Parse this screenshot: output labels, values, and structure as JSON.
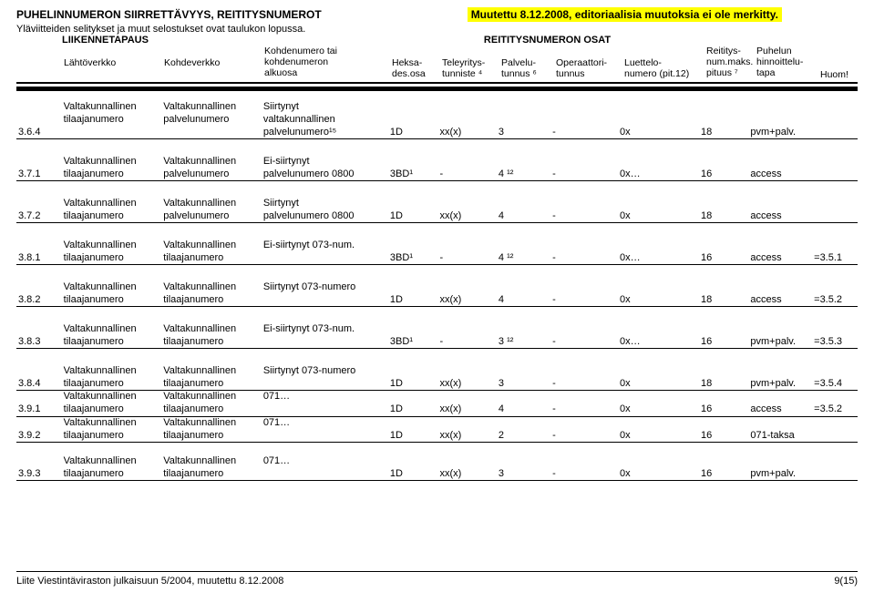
{
  "header": {
    "title": "PUHELINNUMERON SIIRRETTÄVYYS, REITITYSNUMEROT",
    "changed": "Muutettu 8.12.2008, editoriaalisia muutoksia ei ole merkitty.",
    "subtitle": "Yläviitteiden selitykset ja muut selostukset ovat taulukon lopussa.",
    "group_left": "LIIKENNETAPAUS",
    "group_right": "REITITYSNUMERON OSAT",
    "cols": {
      "lahto": "Lähtöverkko",
      "kohde": "Kohdeverkko",
      "num_l1": "Kohdenumero tai",
      "num_l2": "kohdenumeron",
      "num_l3": "alkuosa",
      "heksa_l1": "Heksa-",
      "heksa_l2": "des.osa",
      "tele_l1": "Teleyritys-",
      "tele_l2": "tunniste ⁴",
      "palv_l1": "Palvelu-",
      "palv_l2": "tunnus ⁶",
      "oper_l1": "Operaattori-",
      "oper_l2": "tunnus",
      "luet_l1": "Luettelo-",
      "luet_l2": "numero (pit.12)",
      "reit_l1": "Reititys-",
      "reit_l2": "num.maks.",
      "reit_l3": "pituus ⁷",
      "hinn_l1": "Puhelun",
      "hinn_l2": "hinnoittelu-",
      "hinn_l3": "tapa",
      "huom": "Huom!"
    }
  },
  "rows": [
    {
      "id": "3.6.4",
      "lahto_l1": "Valtakunnallinen",
      "lahto_l2": "tilaajanumero",
      "kohde_l1": "Valtakunnallinen",
      "kohde_l2": "palvelunumero",
      "num_l1": "Siirtynyt",
      "num_l2": "valtakunnallinen",
      "num_l3": "palvelunumero¹⁵",
      "heksa": "1D",
      "tele": "xx(x)",
      "palv": "3",
      "oper": "-",
      "luet": "0x",
      "reit": "18",
      "hinn": "pvm+palv.",
      "huom": ""
    },
    {
      "id": "3.7.1",
      "lahto_l1": "Valtakunnallinen",
      "lahto_l2": "tilaajanumero",
      "kohde_l1": "Valtakunnallinen",
      "kohde_l2": "palvelunumero",
      "num_l1": "Ei-siirtynyt",
      "num_l2": "palvelunumero 0800",
      "num_l3": "",
      "heksa": "3BD¹",
      "tele": "-",
      "palv": "4 ¹²",
      "oper": "-",
      "luet": "0x…",
      "reit": "16",
      "hinn": "access",
      "huom": ""
    },
    {
      "id": "3.7.2",
      "lahto_l1": "Valtakunnallinen",
      "lahto_l2": "tilaajanumero",
      "kohde_l1": "Valtakunnallinen",
      "kohde_l2": "palvelunumero",
      "num_l1": "Siirtynyt",
      "num_l2": "palvelunumero 0800",
      "num_l3": "",
      "heksa": "1D",
      "tele": "xx(x)",
      "palv": "4",
      "oper": "-",
      "luet": "0x",
      "reit": "18",
      "hinn": "access",
      "huom": ""
    },
    {
      "id": "3.8.1",
      "lahto_l1": "Valtakunnallinen",
      "lahto_l2": "tilaajanumero",
      "kohde_l1": "Valtakunnallinen",
      "kohde_l2": "tilaajanumero",
      "num_l1": "",
      "num_l2": "Ei-siirtynyt 073-num.",
      "num_l3": "",
      "heksa": "3BD¹",
      "tele": "-",
      "palv": "4 ¹²",
      "oper": "-",
      "luet": "0x…",
      "reit": "16",
      "hinn": "access",
      "huom": "=3.5.1"
    },
    {
      "id": "3.8.2",
      "lahto_l1": "Valtakunnallinen",
      "lahto_l2": "tilaajanumero",
      "kohde_l1": "Valtakunnallinen",
      "kohde_l2": "tilaajanumero",
      "num_l1": "",
      "num_l2": "Siirtynyt 073-numero",
      "num_l3": "",
      "heksa": "1D",
      "tele": "xx(x)",
      "palv": "4",
      "oper": "-",
      "luet": "0x",
      "reit": "18",
      "hinn": "access",
      "huom": "=3.5.2"
    },
    {
      "id": "3.8.3",
      "lahto_l1": "Valtakunnallinen",
      "lahto_l2": "tilaajanumero",
      "kohde_l1": "Valtakunnallinen",
      "kohde_l2": "tilaajanumero",
      "num_l1": "",
      "num_l2": "Ei-siirtynyt 073-num.",
      "num_l3": "",
      "heksa": "3BD¹",
      "tele": "-",
      "palv": "3 ¹²",
      "oper": "-",
      "luet": "0x…",
      "reit": "16",
      "hinn": "pvm+palv.",
      "huom": "=3.5.3"
    },
    {
      "id": "3.8.4",
      "lahto_l1": "Valtakunnallinen",
      "lahto_l2": "tilaajanumero",
      "kohde_l1": "Valtakunnallinen",
      "kohde_l2": "tilaajanumero",
      "num_l1": "",
      "num_l2": "Siirtynyt 073-numero",
      "num_l3": "",
      "heksa": "1D",
      "tele": "xx(x)",
      "palv": "3",
      "oper": "-",
      "luet": "0x",
      "reit": "18",
      "hinn": "pvm+palv.",
      "huom": "=3.5.4"
    },
    {
      "id": "3.9.1",
      "lahto_l1": "Valtakunnallinen",
      "lahto_l2": "tilaajanumero",
      "kohde_l1": "Valtakunnallinen",
      "kohde_l2": "tilaajanumero",
      "num_l1": "",
      "num_l2": "071…",
      "num_l3": "",
      "heksa": "1D",
      "tele": "xx(x)",
      "palv": "4",
      "oper": "-",
      "luet": "0x",
      "reit": "16",
      "hinn": "access",
      "huom": "=3.5.2"
    },
    {
      "id": "3.9.2",
      "lahto_l1": "Valtakunnallinen",
      "lahto_l2": "tilaajanumero",
      "kohde_l1": "Valtakunnallinen",
      "kohde_l2": "tilaajanumero",
      "num_l1": "",
      "num_l2": "071…",
      "num_l3": "",
      "heksa": "1D",
      "tele": "xx(x)",
      "palv": "2",
      "oper": "-",
      "luet": "0x",
      "reit": "16",
      "hinn": "071-taksa",
      "huom": ""
    },
    {
      "id": "3.9.3",
      "lahto_l1": "Valtakunnallinen",
      "lahto_l2": "tilaajanumero",
      "kohde_l1": "Valtakunnallinen",
      "kohde_l2": "tilaajanumero",
      "num_l1": "",
      "num_l2": "071…",
      "num_l3": "",
      "heksa": "1D",
      "tele": "xx(x)",
      "palv": "3",
      "oper": "-",
      "luet": "0x",
      "reit": "16",
      "hinn": "pvm+palv.",
      "huom": ""
    }
  ],
  "footer": {
    "left": "Liite Viestintäviraston julkaisuun 5/2004, muutettu 8.12.2008",
    "right": "9(15)"
  },
  "layout": {
    "spaced_rows": [
      "3.6.4",
      "3.7.1",
      "3.7.2",
      "3.8.1",
      "3.8.2",
      "3.8.3"
    ],
    "last_spaced_before": "3.9.3"
  }
}
